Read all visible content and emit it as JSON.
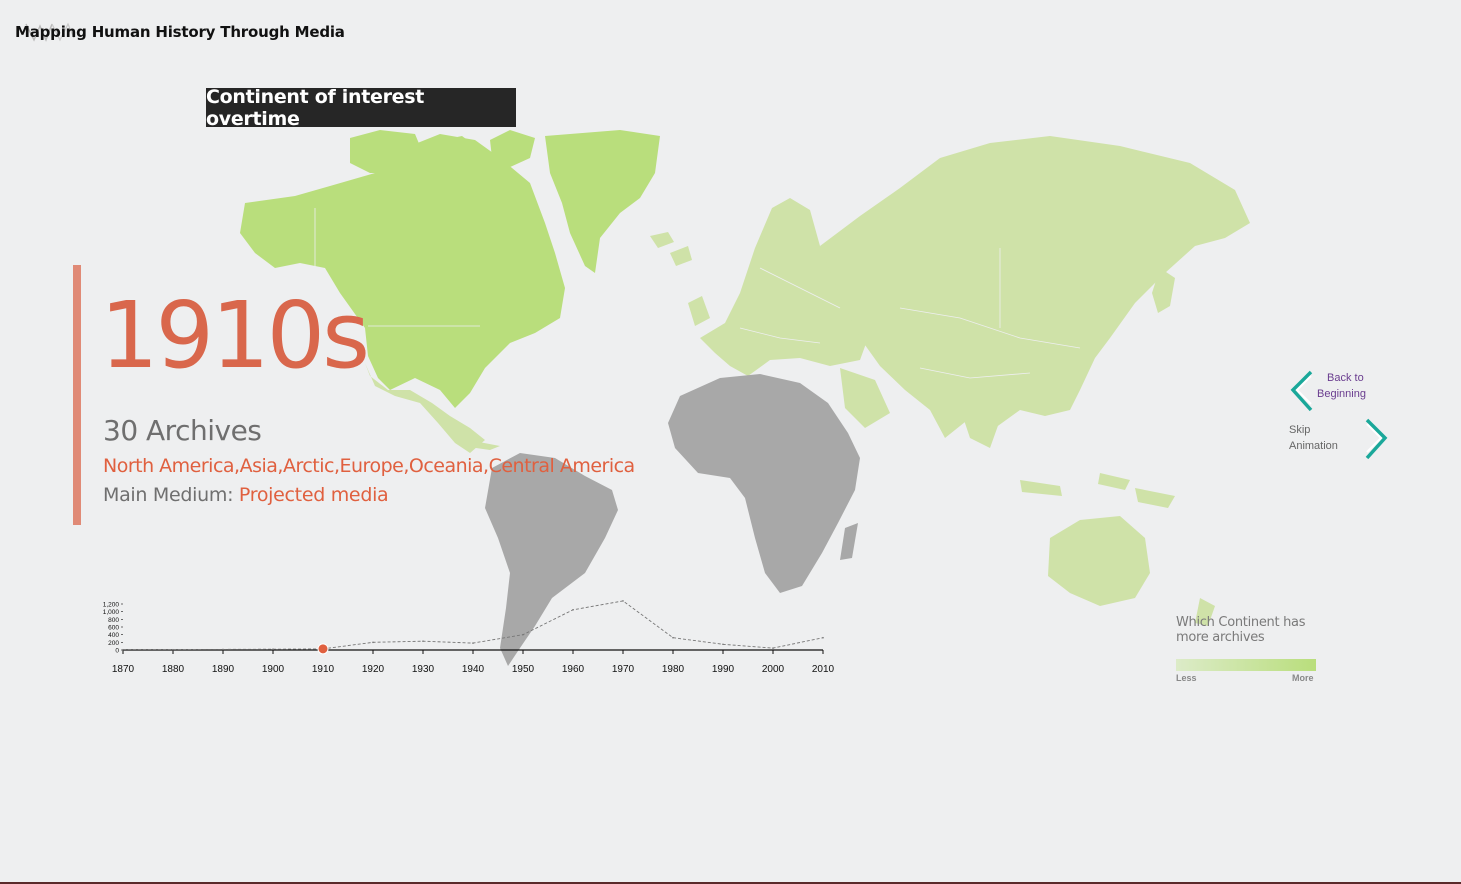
{
  "header": {
    "title": "Mapping Human History Through Media"
  },
  "banner": {
    "text": "Continent of interest overtime"
  },
  "summary": {
    "decade": "1910s",
    "archives": "30 Archives",
    "continents": "North America,Asia,Arctic,Europe,Oceania,Central America",
    "medium_label": "Main Medium:",
    "medium_value": "Projected media"
  },
  "navigation": {
    "back_line1": "Back to",
    "back_line2": "Beginning",
    "skip_line1": "Skip",
    "skip_line2": "Animation"
  },
  "legend": {
    "title": "Which Continent has more archives",
    "less": "Less",
    "more": "More"
  },
  "colors": {
    "accent": "#e0603f",
    "map_highlight": "#b9de7c",
    "map_medium": "#cfe2a8",
    "map_muted": "#a8a8a8",
    "nav_teal": "#1aa89a",
    "nav_purple": "#6a3d8f"
  },
  "chart_data": {
    "type": "line",
    "x": [
      1870,
      1880,
      1890,
      1900,
      1910,
      1920,
      1930,
      1940,
      1950,
      1960,
      1970,
      1980,
      1990,
      2000,
      2010
    ],
    "values": [
      10,
      10,
      15,
      20,
      30,
      200,
      230,
      180,
      400,
      1050,
      1280,
      320,
      150,
      50,
      320
    ],
    "ylim": [
      0,
      1200
    ],
    "yticks": [
      "0",
      "200",
      "400",
      "600",
      "800",
      "1,000",
      "1,200"
    ],
    "xticks": [
      "1870",
      "1880",
      "1890",
      "1900",
      "1910",
      "1920",
      "1930",
      "1940",
      "1950",
      "1960",
      "1970",
      "1980",
      "1990",
      "2000",
      "2010"
    ],
    "highlight_x": 1910,
    "line_style": "dashed"
  }
}
